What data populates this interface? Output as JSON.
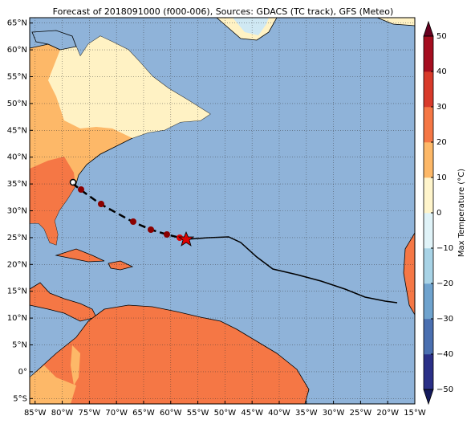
{
  "chart_data": {
    "type": "map",
    "title": "Forecast of 2018091000 (f000-006), Sources: GDACS (TC track), GFS (Meteo)",
    "xlim": [
      -86,
      -15
    ],
    "ylim": [
      -6,
      66
    ],
    "xticks": [
      {
        "value": -85,
        "label": "85°W"
      },
      {
        "value": -80,
        "label": "80°W"
      },
      {
        "value": -75,
        "label": "75°W"
      },
      {
        "value": -70,
        "label": "70°W"
      },
      {
        "value": -65,
        "label": "65°W"
      },
      {
        "value": -60,
        "label": "60°W"
      },
      {
        "value": -55,
        "label": "55°W"
      },
      {
        "value": -50,
        "label": "50°W"
      },
      {
        "value": -45,
        "label": "45°W"
      },
      {
        "value": -40,
        "label": "40°W"
      },
      {
        "value": -35,
        "label": "35°W"
      },
      {
        "value": -30,
        "label": "30°W"
      },
      {
        "value": -25,
        "label": "25°W"
      },
      {
        "value": -20,
        "label": "20°W"
      },
      {
        "value": -15,
        "label": "15°W"
      }
    ],
    "yticks": [
      {
        "value": 65,
        "label": "65°N"
      },
      {
        "value": 60,
        "label": "60°N"
      },
      {
        "value": 55,
        "label": "55°N"
      },
      {
        "value": 50,
        "label": "50°N"
      },
      {
        "value": 45,
        "label": "45°N"
      },
      {
        "value": 40,
        "label": "40°N"
      },
      {
        "value": 35,
        "label": "35°N"
      },
      {
        "value": 30,
        "label": "30°N"
      },
      {
        "value": 25,
        "label": "25°N"
      },
      {
        "value": 20,
        "label": "20°N"
      },
      {
        "value": 15,
        "label": "15°N"
      },
      {
        "value": 10,
        "label": "10°N"
      },
      {
        "value": 5,
        "label": "5°N"
      },
      {
        "value": 0,
        "label": "0°"
      },
      {
        "value": -5,
        "label": "5°S"
      }
    ],
    "grid": true,
    "colorbar": {
      "label": "Max Temperature (°C)",
      "lim": [
        -50,
        50
      ],
      "ticks": [
        {
          "value": -50,
          "label": "−50"
        },
        {
          "value": -40,
          "label": "−40"
        },
        {
          "value": -30,
          "label": "−30"
        },
        {
          "value": -20,
          "label": "−20"
        },
        {
          "value": -10,
          "label": "−10"
        },
        0,
        10,
        20,
        30,
        40,
        50
      ],
      "colors": [
        "#2a2f87",
        "#4a6fb0",
        "#6fa3ce",
        "#a8d3e6",
        "#e0f3f8",
        "#fff5cc",
        "#fdb868",
        "#f57745",
        "#d83a2a",
        "#a50d1f"
      ],
      "extend_colors": [
        "#141a5c",
        "#67001f"
      ]
    }
  }
}
